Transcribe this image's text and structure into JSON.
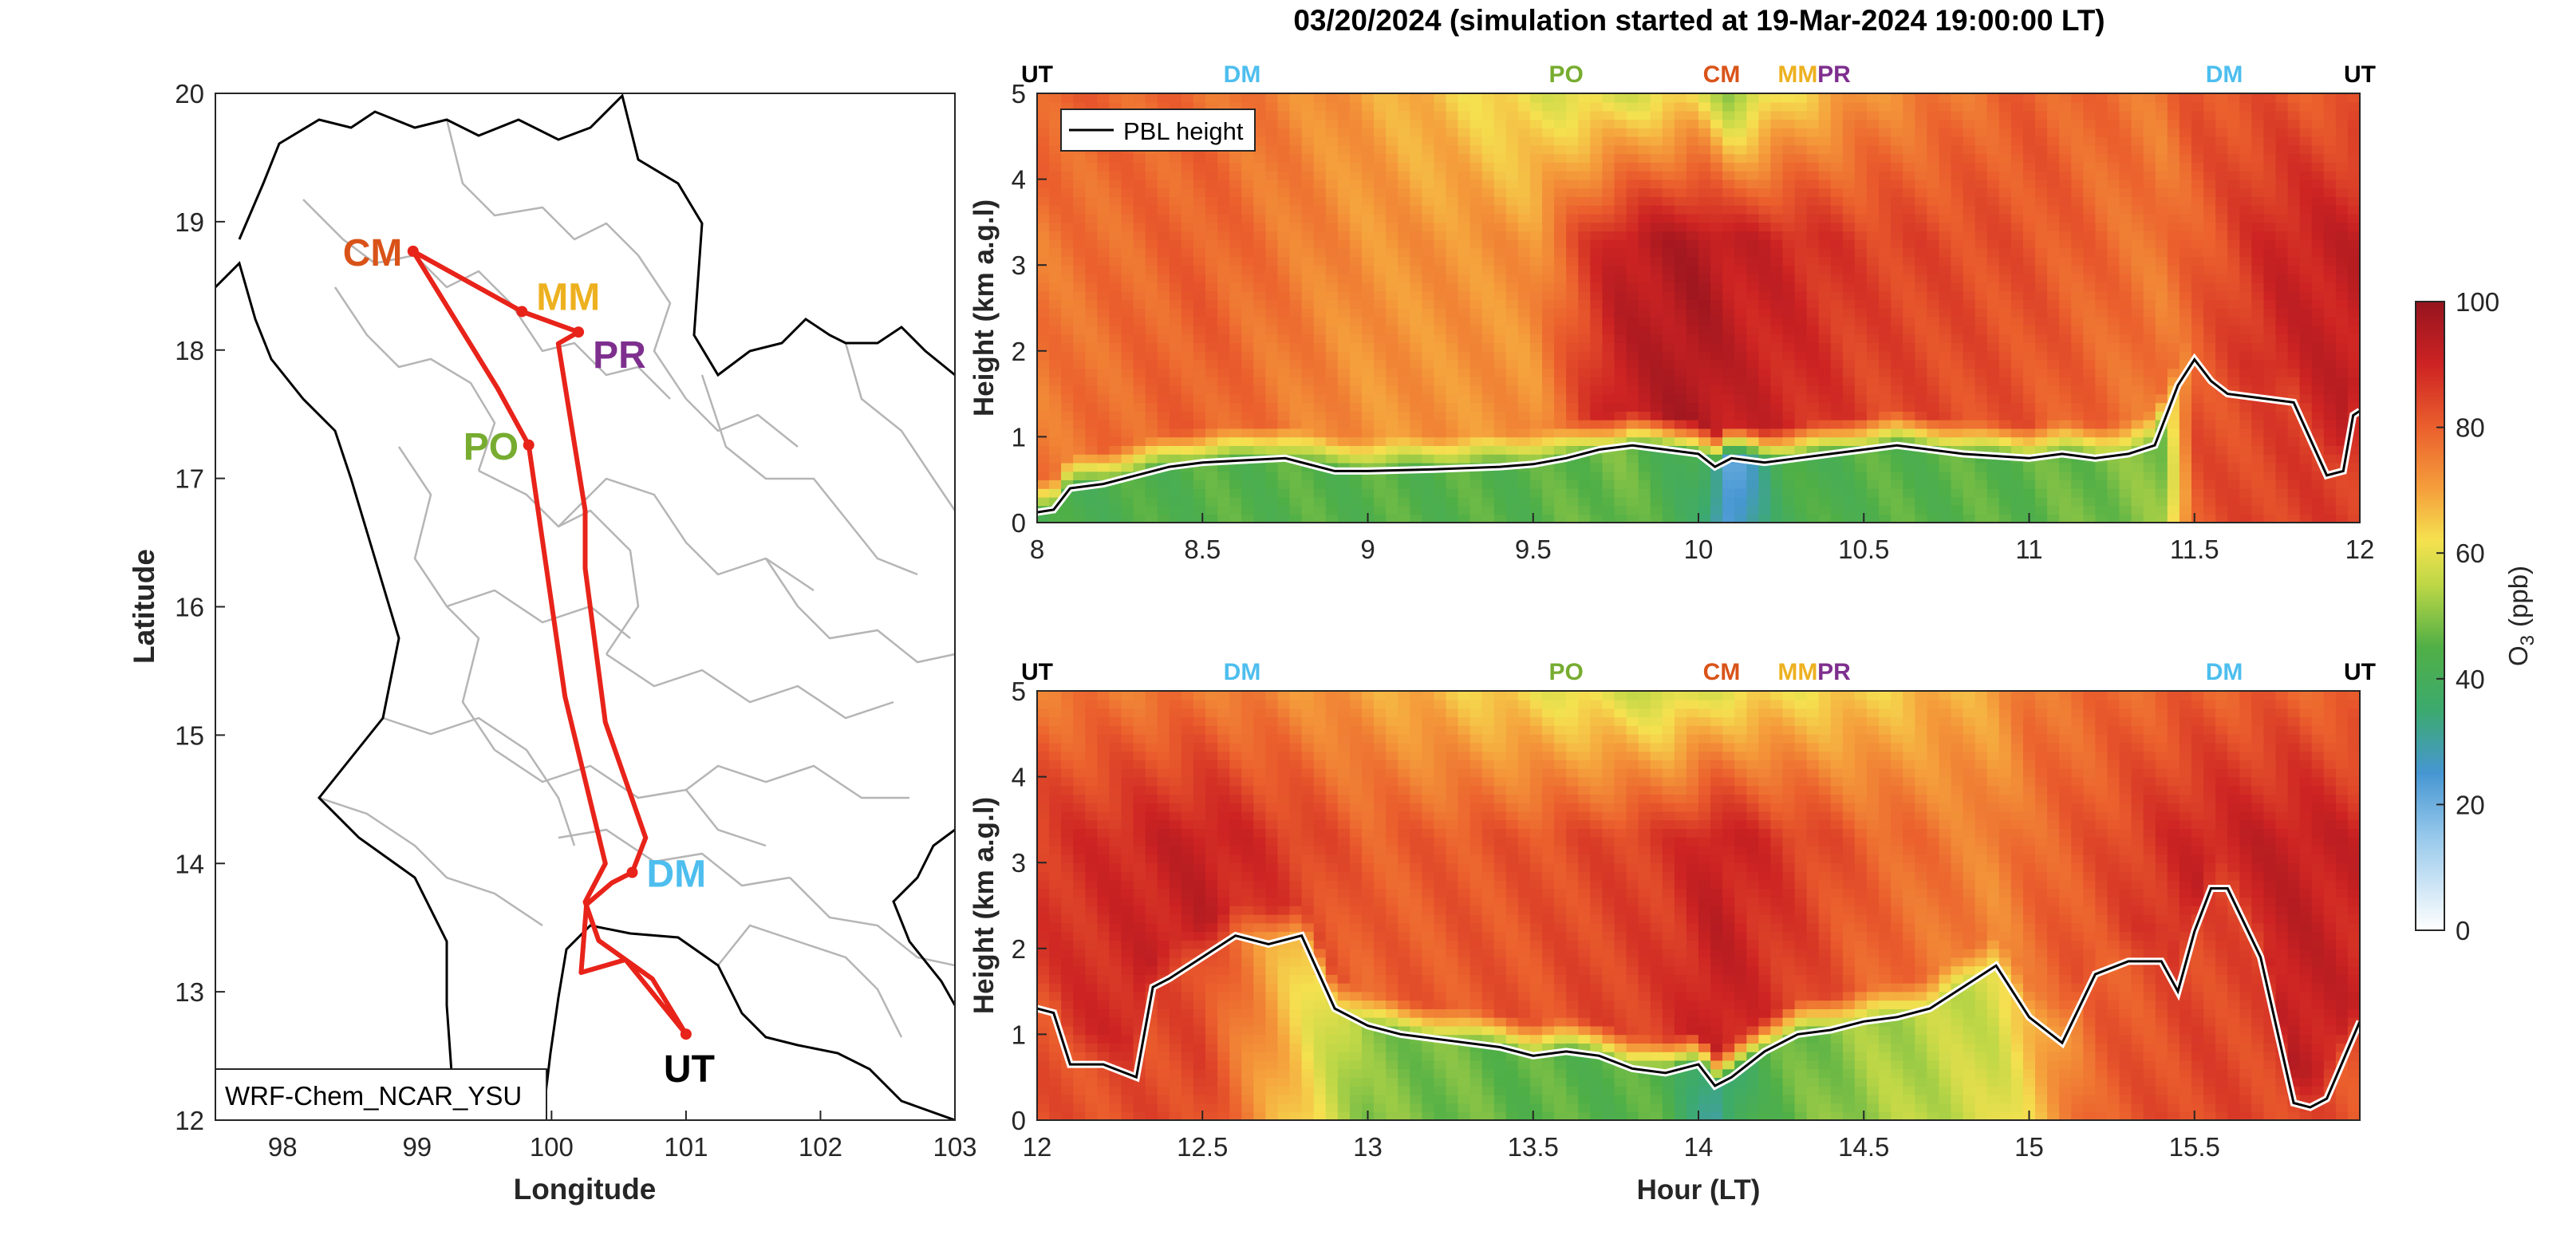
{
  "figure": {
    "title": "03/20/2024 (simulation started at 19-Mar-2024 19:00:00 LT)"
  },
  "map": {
    "model_label": "WRF-Chem_NCAR_YSU",
    "xlabel": "Longitude",
    "ylabel": "Latitude",
    "xticks": [
      "98",
      "99",
      "100",
      "101",
      "102",
      "103"
    ],
    "yticks": [
      "12",
      "13",
      "14",
      "15",
      "16",
      "17",
      "18",
      "19",
      "20"
    ],
    "xlim": [
      97.5,
      103
    ],
    "ylim": [
      12,
      20
    ],
    "route_color": "#e8231a",
    "sites": [
      {
        "code": "CM",
        "lon": 98.97,
        "lat": 18.77,
        "color": "#d95319"
      },
      {
        "code": "MM",
        "lon": 99.78,
        "lat": 18.3,
        "color": "#edb120"
      },
      {
        "code": "PR",
        "lon": 100.2,
        "lat": 18.14,
        "color": "#7e2f8e"
      },
      {
        "code": "PO",
        "lon": 99.83,
        "lat": 17.26,
        "color": "#77ac30"
      },
      {
        "code": "DM",
        "lon": 100.6,
        "lat": 13.93,
        "color": "#4dbeee"
      },
      {
        "code": "UT",
        "lon": 101.0,
        "lat": 12.67,
        "color": "#000000"
      }
    ],
    "route": [
      [
        101.0,
        12.67
      ],
      [
        100.55,
        13.25
      ],
      [
        100.22,
        13.15
      ],
      [
        100.26,
        13.68
      ],
      [
        100.45,
        13.85
      ],
      [
        100.6,
        13.93
      ],
      [
        100.7,
        14.2
      ],
      [
        100.4,
        15.1
      ],
      [
        100.25,
        16.3
      ],
      [
        100.25,
        16.75
      ],
      [
        100.05,
        18.05
      ],
      [
        100.2,
        18.14
      ],
      [
        99.78,
        18.3
      ],
      [
        98.97,
        18.77
      ],
      [
        99.6,
        17.7
      ],
      [
        99.83,
        17.26
      ],
      [
        100.1,
        15.3
      ],
      [
        100.4,
        14.0
      ],
      [
        100.25,
        13.7
      ],
      [
        100.35,
        13.4
      ],
      [
        100.75,
        13.1
      ],
      [
        101.0,
        12.67
      ]
    ]
  },
  "chart_data": [
    {
      "type": "heatmap",
      "xlim": [
        8,
        12
      ],
      "xticks": [
        "8",
        "8.5",
        "9",
        "9.5",
        "10",
        "10.5",
        "11",
        "11.5",
        "12"
      ],
      "ylim": [
        0,
        5
      ],
      "yticks": [
        "0",
        "1",
        "2",
        "3",
        "4",
        "5"
      ],
      "ylabel": "Height (km a.g.l)",
      "xlabel": "",
      "legend": "PBL height",
      "legend_position": "top-left",
      "value_name": "O3 (ppb)",
      "top_markers": [
        {
          "label": "UT",
          "x": 8.0,
          "color": "#000000"
        },
        {
          "label": "DM",
          "x": 8.62,
          "color": "#4dbeee"
        },
        {
          "label": "PO",
          "x": 9.6,
          "color": "#77ac30"
        },
        {
          "label": "CM",
          "x": 10.07,
          "color": "#d95319"
        },
        {
          "label": "MM",
          "x": 10.3,
          "color": "#edb120"
        },
        {
          "label": "PR",
          "x": 10.41,
          "color": "#7e2f8e"
        },
        {
          "label": "DM",
          "x": 11.59,
          "color": "#4dbeee"
        },
        {
          "label": "UT",
          "x": 12.0,
          "color": "#000000"
        }
      ],
      "pbl_height": {
        "x": [
          8.0,
          8.05,
          8.1,
          8.2,
          8.3,
          8.4,
          8.5,
          8.6,
          8.75,
          8.9,
          9.0,
          9.2,
          9.4,
          9.5,
          9.6,
          9.7,
          9.8,
          9.9,
          10.0,
          10.05,
          10.1,
          10.2,
          10.3,
          10.4,
          10.5,
          10.6,
          10.8,
          11.0,
          11.1,
          11.2,
          11.3,
          11.38,
          11.42,
          11.45,
          11.5,
          11.55,
          11.6,
          11.7,
          11.8,
          11.9,
          11.95,
          11.98,
          12.0
        ],
        "y": [
          0.12,
          0.15,
          0.4,
          0.45,
          0.55,
          0.65,
          0.7,
          0.72,
          0.75,
          0.6,
          0.6,
          0.62,
          0.65,
          0.68,
          0.75,
          0.85,
          0.9,
          0.85,
          0.8,
          0.65,
          0.75,
          0.7,
          0.75,
          0.8,
          0.85,
          0.9,
          0.8,
          0.75,
          0.8,
          0.75,
          0.8,
          0.9,
          1.3,
          1.6,
          1.9,
          1.65,
          1.5,
          1.45,
          1.4,
          0.55,
          0.6,
          1.25,
          1.3
        ]
      },
      "o3_profile": {
        "x": [
          8.0,
          8.5,
          9.0,
          9.5,
          9.75,
          10.0,
          10.1,
          10.25,
          10.5,
          11.0,
          11.4,
          11.5,
          11.75,
          12.0
        ],
        "surface": [
          42,
          45,
          45,
          45,
          48,
          40,
          20,
          42,
          45,
          46,
          50,
          82,
          85,
          86
        ],
        "mid": [
          76,
          80,
          72,
          72,
          92,
          96,
          92,
          90,
          85,
          82,
          76,
          80,
          90,
          92
        ],
        "top": [
          80,
          78,
          70,
          60,
          58,
          62,
          50,
          62,
          72,
          80,
          76,
          82,
          82,
          80
        ]
      }
    },
    {
      "type": "heatmap",
      "xlim": [
        12,
        16
      ],
      "xticks": [
        "12",
        "12.5",
        "13",
        "13.5",
        "14",
        "14.5",
        "15",
        "15.5"
      ],
      "ylim": [
        0,
        5
      ],
      "yticks": [
        "0",
        "1",
        "2",
        "3",
        "4",
        "5"
      ],
      "ylabel": "Height (km a.g.l)",
      "xlabel": "Hour (LT)",
      "value_name": "O3 (ppb)",
      "top_markers": [
        {
          "label": "UT",
          "x": 12.0,
          "color": "#000000"
        },
        {
          "label": "DM",
          "x": 12.62,
          "color": "#4dbeee"
        },
        {
          "label": "PO",
          "x": 13.6,
          "color": "#77ac30"
        },
        {
          "label": "CM",
          "x": 14.07,
          "color": "#d95319"
        },
        {
          "label": "MM",
          "x": 14.3,
          "color": "#edb120"
        },
        {
          "label": "PR",
          "x": 14.41,
          "color": "#7e2f8e"
        },
        {
          "label": "DM",
          "x": 15.59,
          "color": "#4dbeee"
        },
        {
          "label": "UT",
          "x": 16.0,
          "color": "#000000"
        }
      ],
      "pbl_height": {
        "x": [
          12.0,
          12.05,
          12.1,
          12.2,
          12.3,
          12.35,
          12.4,
          12.5,
          12.6,
          12.7,
          12.8,
          12.9,
          13.0,
          13.1,
          13.2,
          13.3,
          13.4,
          13.5,
          13.6,
          13.7,
          13.8,
          13.9,
          14.0,
          14.05,
          14.1,
          14.2,
          14.3,
          14.4,
          14.5,
          14.6,
          14.7,
          14.8,
          14.9,
          15.0,
          15.1,
          15.2,
          15.3,
          15.4,
          15.45,
          15.5,
          15.55,
          15.6,
          15.7,
          15.8,
          15.85,
          15.9,
          16.0
        ],
        "y": [
          1.3,
          1.25,
          0.65,
          0.65,
          0.5,
          1.55,
          1.65,
          1.9,
          2.15,
          2.05,
          2.15,
          1.3,
          1.1,
          1.0,
          0.95,
          0.9,
          0.85,
          0.75,
          0.8,
          0.75,
          0.6,
          0.55,
          0.65,
          0.4,
          0.5,
          0.8,
          1.0,
          1.05,
          1.15,
          1.2,
          1.3,
          1.55,
          1.8,
          1.2,
          0.9,
          1.7,
          1.85,
          1.85,
          1.5,
          2.2,
          2.7,
          2.7,
          1.9,
          0.2,
          0.15,
          0.25,
          1.15
        ]
      },
      "o3_profile": {
        "x": [
          12.0,
          12.5,
          13.0,
          13.5,
          13.9,
          14.05,
          14.2,
          14.5,
          14.9,
          15.0,
          15.2,
          15.5,
          15.8,
          16.0
        ],
        "surface": [
          82,
          84,
          50,
          46,
          45,
          30,
          45,
          52,
          58,
          65,
          80,
          84,
          84,
          82
        ],
        "mid": [
          86,
          92,
          80,
          82,
          86,
          92,
          88,
          80,
          74,
          78,
          82,
          90,
          92,
          90
        ],
        "top": [
          76,
          76,
          70,
          62,
          56,
          60,
          62,
          64,
          70,
          76,
          78,
          80,
          80,
          78
        ]
      }
    }
  ],
  "colorbar": {
    "label_main": "O",
    "label_sub": "3",
    "label_unit": "(ppb)",
    "ticks": [
      "0",
      "20",
      "40",
      "60",
      "80",
      "100"
    ],
    "lim": [
      0,
      100
    ]
  }
}
